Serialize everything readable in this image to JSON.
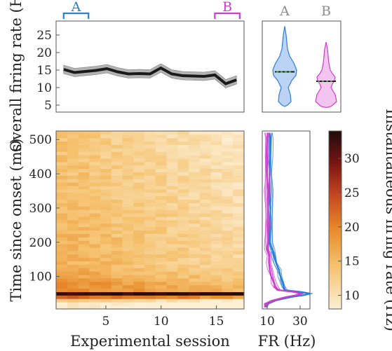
{
  "colors": {
    "A": "#2a7fd4",
    "A_fill": "#bcd3f5",
    "B": "#cc3fcc",
    "B_fill": "#f2c4ef",
    "line": "#1a1a1a",
    "band": "#b3b3b3",
    "median": "#2f9c2f",
    "frame": "#555555",
    "label_gray": "#8c8c8c"
  },
  "chart_data": [
    {
      "id": "overall",
      "type": "line",
      "ylabel": "Overall firing rate (Hz)",
      "ylim": [
        3,
        29
      ],
      "xlim": [
        0.3,
        17.7
      ],
      "yticks": [
        5,
        10,
        15,
        20,
        25
      ],
      "grid": false,
      "x": [
        1,
        2,
        3,
        4,
        5,
        6,
        7,
        8,
        9,
        10,
        11,
        12,
        13,
        14,
        15,
        16,
        17
      ],
      "y": [
        15.2,
        14.3,
        14.6,
        14.9,
        15.4,
        14.5,
        13.9,
        14.0,
        13.9,
        15.6,
        13.9,
        13.4,
        13.3,
        13.2,
        13.6,
        11.1,
        12.2
      ],
      "band": 1.2,
      "ranges": [
        {
          "label": "A",
          "from": 1,
          "to": 3.3,
          "color": "#2a7fd4"
        },
        {
          "label": "B",
          "from": 15,
          "to": 17.3,
          "color": "#cc3fcc"
        }
      ]
    },
    {
      "id": "violins",
      "type": "violin",
      "ylim": [
        3,
        29
      ],
      "categories": [
        "A",
        "B"
      ],
      "medians": [
        14.5,
        11.8
      ]
    },
    {
      "id": "heatmap",
      "type": "heatmap",
      "xlabel": "Experimental session",
      "ylabel": "Time since onset (ms)",
      "xticks": [
        5,
        10,
        15
      ],
      "yticks": [
        100,
        200,
        300,
        400,
        500
      ],
      "xlim": [
        0.5,
        17.5
      ],
      "ylim": [
        5,
        525
      ],
      "sessions": 17,
      "bin_ms": 10,
      "colorbar": {
        "label": "Instantaneous firing rate (Hz)",
        "min": 8,
        "max": 34,
        "ticks": [
          10,
          15,
          20,
          25,
          30
        ]
      }
    },
    {
      "id": "fr-profile",
      "type": "line",
      "xlabel": "FR (Hz)",
      "xticks": [
        10,
        30
      ],
      "xlim": [
        7,
        36
      ],
      "ylim": [
        5,
        525
      ],
      "series": [
        {
          "id": "A",
          "y_ms": [
            10,
            20,
            30,
            40,
            45,
            50,
            55,
            60,
            70,
            80,
            100,
            120,
            140,
            160,
            180,
            200,
            250,
            300,
            350,
            400,
            450,
            500,
            520
          ],
          "fr": [
            9,
            10,
            15,
            25,
            32,
            36,
            30,
            21,
            20,
            19,
            18,
            17,
            15,
            14,
            13,
            12,
            12,
            12,
            12,
            12,
            12,
            12,
            12
          ]
        },
        {
          "id": "B",
          "y_ms": [
            10,
            20,
            30,
            40,
            45,
            50,
            55,
            60,
            70,
            80,
            100,
            120,
            140,
            160,
            180,
            200,
            250,
            300,
            350,
            400,
            450,
            500,
            520
          ],
          "fr": [
            9,
            9,
            14,
            22,
            28,
            31,
            26,
            17,
            15,
            14,
            13,
            12,
            11,
            11,
            10,
            10,
            10,
            10,
            10,
            10,
            10,
            10,
            10
          ]
        }
      ]
    }
  ]
}
